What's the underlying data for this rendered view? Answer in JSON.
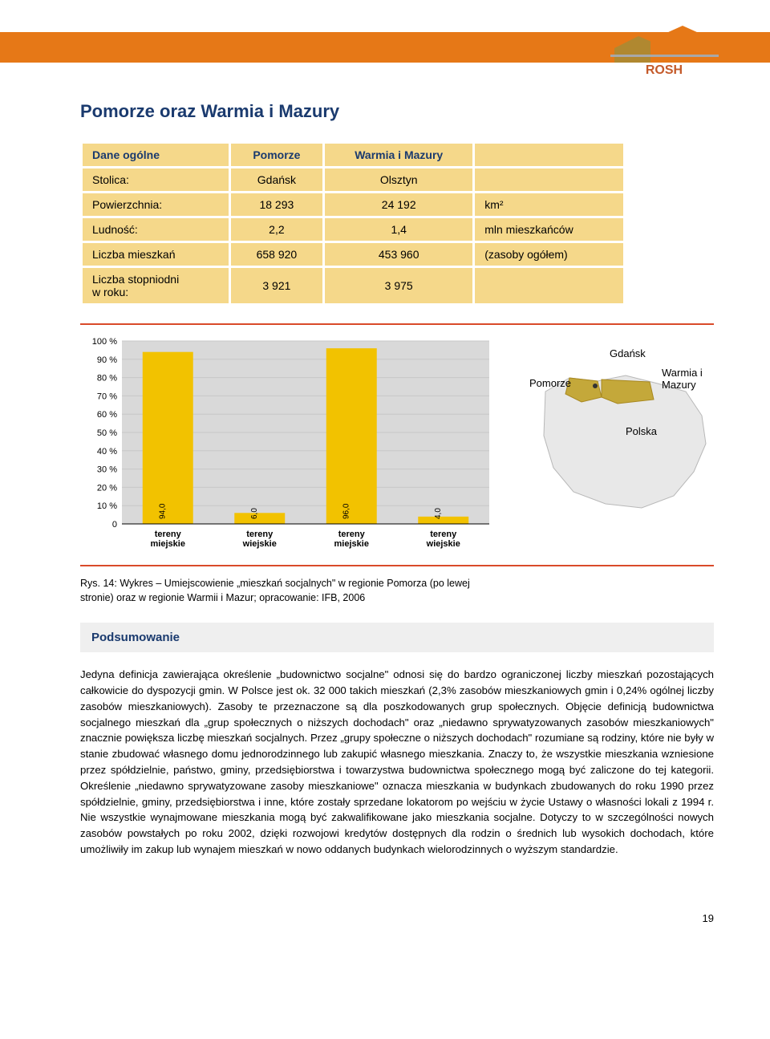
{
  "logo": {
    "text": "ROSH",
    "text_color": "#c45a2a",
    "shape1": "#b08830",
    "shape2": "#e67817"
  },
  "header": {
    "stripe_color": "#e67817"
  },
  "title": "Pomorze oraz Warmia i Mazury",
  "table": {
    "header_bg": "#f5d88a",
    "header_color": "#1a3a6e",
    "cell_bg": "#f5d88a",
    "columns": [
      "Dane ogólne",
      "Pomorze",
      "Warmia i Mazury",
      ""
    ],
    "rows": [
      [
        "Stolica:",
        "Gdańsk",
        "Olsztyn",
        ""
      ],
      [
        "Powierzchnia:",
        "18 293",
        "24 192",
        "km²"
      ],
      [
        "Ludność:",
        "2,2",
        "1,4",
        "mln mieszkańców"
      ],
      [
        "Liczba mieszkań",
        "658 920",
        "453 960",
        "(zasoby ogółem)"
      ],
      [
        "Liczba stopniodni\nw roku:",
        "3 921",
        "3 975",
        ""
      ]
    ]
  },
  "chart": {
    "type": "bar",
    "background": "#d9d9d9",
    "grid_color": "#c8c8c8",
    "bar_color": "#f2c200",
    "y_ticks": [
      "0",
      "10 %",
      "20 %",
      "30 %",
      "40 %",
      "50 %",
      "60 %",
      "70 %",
      "80 %",
      "90 %",
      "100 %"
    ],
    "series": [
      {
        "label": "tereny\nmiejskie",
        "value": 94.0,
        "value_label": "94,0"
      },
      {
        "label": "tereny\nwiejskie",
        "value": 6.0,
        "value_label": "6,0"
      },
      {
        "label": "tereny\nmiejskie",
        "value": 96.0,
        "value_label": "96,0"
      },
      {
        "label": "tereny\nwiejskie",
        "value": 4.0,
        "value_label": "4,0"
      }
    ],
    "ylim": [
      0,
      100
    ]
  },
  "map": {
    "outline_color": "#c0c0c0",
    "fill_color": "#e8e8e8",
    "highlight_color": "#c4a83a",
    "labels": {
      "gdansk": "Gdańsk",
      "pomorze": "Pomorze",
      "warmia": "Warmia i\nMazury",
      "polska": "Polska"
    }
  },
  "caption": "Rys. 14: Wykres – Umiejscowienie „mieszkań socjalnych\" w regionie Pomorza (po lewej stronie) oraz w regionie Warmii i Mazur; opracowanie: IFB, 2006",
  "summary": {
    "heading": "Podsumowanie",
    "body": "Jedyna definicja zawierająca określenie „budownictwo socjalne\" odnosi się do bardzo ograniczonej liczby mieszkań pozostających całkowicie do dyspozycji gmin. W Polsce jest ok. 32 000 takich mieszkań (2,3% zasobów mieszkaniowych gmin i 0,24% ogólnej liczby zasobów mieszkaniowych). Zasoby te przeznaczone są dla poszkodowanych grup społecznych. Objęcie definicją budownictwa socjalnego mieszkań dla „grup społecznych o niższych dochodach\" oraz „niedawno sprywatyzowanych zasobów mieszkaniowych\" znacznie powiększa liczbę mieszkań socjalnych. Przez „grupy społeczne o niższych dochodach\" rozumiane są rodziny, które nie były w stanie zbudować własnego domu jednorodzinnego lub zakupić własnego mieszkania. Znaczy to, że wszystkie mieszkania wzniesione przez spółdzielnie, państwo, gminy, przedsiębiorstwa i towarzystwa budownictwa społecznego mogą być zaliczone do tej kategorii. Określenie „niedawno sprywatyzowane zasoby mieszkaniowe\" oznacza mieszkania w budynkach zbudowanych do roku 1990 przez spółdzielnie, gminy, przedsiębiorstwa i inne, które zostały sprzedane lokatorom po wejściu w życie Ustawy o własności lokali z 1994 r. Nie wszystkie wynajmowane mieszkania mogą być zakwalifikowane jako mieszkania socjalne. Dotyczy to w szczególności nowych zasobów powstałych po roku 2002, dzięki rozwojowi kredytów dostępnych dla rodzin o średnich lub wysokich dochodach, które umożliwiły im zakup lub wynajem mieszkań w nowo oddanych budynkach wielorodzinnych o wyższym standardzie."
  },
  "page_number": "19",
  "hr_color": "#d94a2a"
}
